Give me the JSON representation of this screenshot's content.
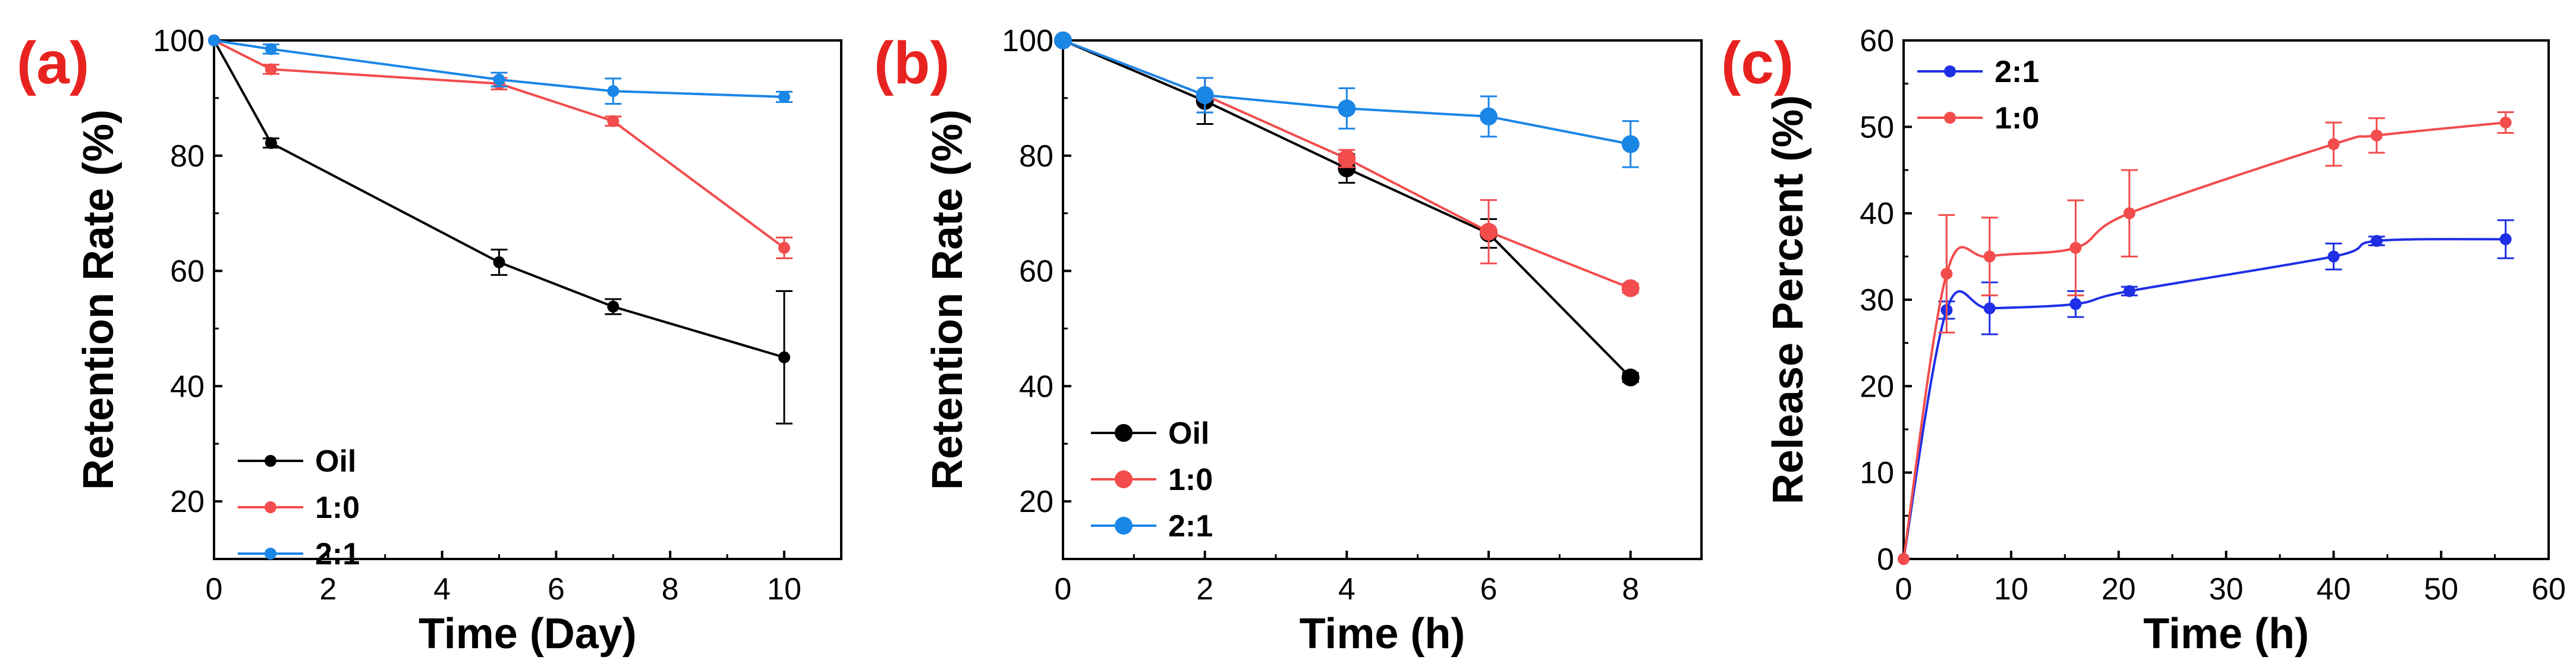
{
  "chart_data": [
    {
      "type": "line",
      "panel_label": "(a)",
      "title": "",
      "xlabel": "Time (Day)",
      "ylabel": "Retention Rate (%)",
      "xlim": [
        0,
        11
      ],
      "ylim": [
        10,
        100
      ],
      "xticks": [
        0,
        2,
        4,
        6,
        8,
        10
      ],
      "yticks": [
        20,
        40,
        60,
        80,
        100
      ],
      "legend_position": "bottom-left",
      "series": [
        {
          "name": "Oil",
          "color": "#000000",
          "x": [
            0,
            1,
            5,
            7,
            10
          ],
          "y": [
            100,
            82.2,
            61.5,
            53.8,
            45.0
          ],
          "err": [
            0,
            0.8,
            2.2,
            1.3,
            11.5
          ],
          "marker": "small"
        },
        {
          "name": "1:0",
          "color": "#f24c4c",
          "x": [
            0,
            1,
            5,
            7,
            10
          ],
          "y": [
            100,
            95.0,
            92.5,
            86.0,
            64.0
          ],
          "err": [
            0,
            0.8,
            1.0,
            0.8,
            1.8
          ],
          "marker": "small"
        },
        {
          "name": "2:1",
          "color": "#1a86e6",
          "x": [
            0,
            1,
            5,
            7,
            10
          ],
          "y": [
            100,
            98.5,
            93.2,
            91.2,
            90.2
          ],
          "err": [
            0,
            0.8,
            1.2,
            2.2,
            0.9
          ],
          "marker": "small"
        }
      ]
    },
    {
      "type": "line",
      "panel_label": "(b)",
      "title": "",
      "xlabel": "Time (h)",
      "ylabel": "Retention Rate (%)",
      "xlim": [
        0,
        9
      ],
      "ylim": [
        10,
        100
      ],
      "xticks": [
        0,
        2,
        4,
        6,
        8
      ],
      "yticks": [
        20,
        40,
        60,
        80,
        100
      ],
      "legend_position": "bottom-left",
      "series": [
        {
          "name": "Oil",
          "color": "#000000",
          "x": [
            0,
            2,
            4,
            6,
            8
          ],
          "y": [
            100,
            89.5,
            77.8,
            66.5,
            41.5
          ],
          "err": [
            0,
            4.0,
            2.5,
            2.5,
            0.8
          ],
          "marker": "large"
        },
        {
          "name": "1:0",
          "color": "#f24c4c",
          "x": [
            0,
            2,
            4,
            6,
            8
          ],
          "y": [
            100,
            90.5,
            79.5,
            66.8,
            57.0
          ],
          "err": [
            0,
            3.0,
            1.5,
            5.5,
            0.8
          ],
          "marker": "large"
        },
        {
          "name": "2:1",
          "color": "#1a86e6",
          "x": [
            0,
            2,
            4,
            6,
            8
          ],
          "y": [
            100,
            90.5,
            88.2,
            86.8,
            82.0
          ],
          "err": [
            0,
            3.0,
            3.5,
            3.5,
            4.0
          ],
          "marker": "large"
        }
      ]
    },
    {
      "type": "line",
      "panel_label": "(c)",
      "title": "",
      "xlabel": "Time (h)",
      "ylabel": "Release Percent (%)",
      "xlim": [
        0,
        60
      ],
      "ylim": [
        0,
        60
      ],
      "xticks": [
        0,
        10,
        20,
        30,
        40,
        50,
        60
      ],
      "yticks": [
        0,
        10,
        20,
        30,
        40,
        50,
        60
      ],
      "legend_position": "top-left",
      "series": [
        {
          "name": "2:1",
          "color": "#1f2fe6",
          "x": [
            0,
            4,
            8,
            16,
            21,
            40,
            44,
            56
          ],
          "y": [
            0,
            28.8,
            29.0,
            29.5,
            31.0,
            35.0,
            36.8,
            37.0
          ],
          "err": [
            0,
            1.0,
            3.0,
            1.5,
            0.5,
            1.5,
            0.5,
            2.2
          ],
          "marker": "small"
        },
        {
          "name": "1:0",
          "color": "#f24c4c",
          "x": [
            0,
            4,
            8,
            16,
            21,
            40,
            44,
            56
          ],
          "y": [
            0,
            33.0,
            35.0,
            36.0,
            40.0,
            48.0,
            49.0,
            50.5
          ],
          "err": [
            0,
            6.8,
            4.5,
            5.5,
            5.0,
            2.5,
            2.0,
            1.2
          ],
          "marker": "small"
        }
      ]
    }
  ]
}
